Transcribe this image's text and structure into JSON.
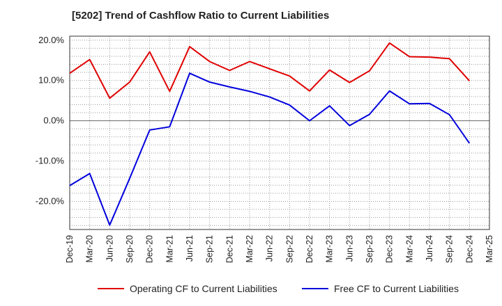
{
  "chart_data": {
    "type": "line",
    "title": "[5202]  Trend of Cashflow Ratio to Current Liabilities",
    "x": [
      "Dec-19",
      "Mar-20",
      "Jun-20",
      "Sep-20",
      "Dec-20",
      "Mar-21",
      "Jun-21",
      "Sep-21",
      "Dec-21",
      "Mar-22",
      "Jun-22",
      "Sep-22",
      "Dec-22",
      "Mar-23",
      "Jun-23",
      "Sep-23",
      "Dec-23",
      "Mar-24",
      "Jun-24",
      "Sep-24",
      "Dec-24",
      "Mar-25"
    ],
    "ylim": [
      -27,
      21
    ],
    "yticks": [
      20,
      10,
      0,
      -10,
      -20
    ],
    "ytick_labels": [
      "20.0%",
      "10.0%",
      "0.0%",
      "-10.0%",
      "-20.0%"
    ],
    "grid": true,
    "legend_position": "bottom",
    "series": [
      {
        "name": "Operating CF to Current Liabilities",
        "color": "#e00000",
        "values": [
          11.8,
          15.2,
          5.6,
          9.6,
          17.1,
          7.3,
          18.4,
          14.7,
          12.5,
          14.7,
          12.9,
          11.1,
          7.4,
          12.6,
          9.5,
          12.4,
          19.3,
          15.9,
          15.8,
          15.4,
          9.9,
          null
        ]
      },
      {
        "name": "Free CF to Current Liabilities",
        "color": "#0000dd",
        "values": [
          -16.1,
          -13.1,
          -25.9,
          -14.3,
          -2.3,
          -1.5,
          11.8,
          9.6,
          8.4,
          7.3,
          5.9,
          3.9,
          0.0,
          3.7,
          -1.2,
          1.6,
          7.4,
          4.2,
          4.3,
          1.5,
          -5.6,
          null
        ]
      }
    ]
  }
}
